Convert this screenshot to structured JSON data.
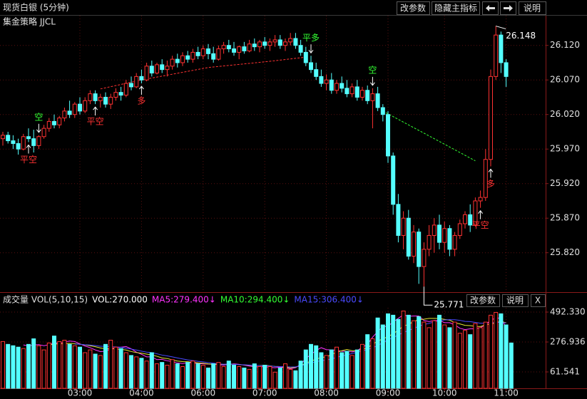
{
  "header": {
    "title": "现货白银 (5分钟)",
    "buttons": [
      "改参数",
      "隐藏主指标",
      "说明"
    ]
  },
  "chart_data": [
    {
      "type": "candlestick",
      "title": "集金策略 JJCL",
      "colors": {
        "up": "#ff3232",
        "down": "#54ffff"
      },
      "ylim": [
        25.763,
        26.163
      ],
      "yticks": [
        {
          "value": 25.82,
          "label": "25.820"
        },
        {
          "value": 25.87,
          "label": "25.870"
        },
        {
          "value": 25.92,
          "label": "25.920"
        },
        {
          "value": 25.97,
          "label": "25.970"
        },
        {
          "value": 26.02,
          "label": "26.020"
        },
        {
          "value": 26.07,
          "label": "26.070"
        },
        {
          "value": 26.12,
          "label": "26.120"
        }
      ],
      "candles": [
        [
          25.985,
          25.995,
          25.975,
          25.99
        ],
        [
          25.99,
          25.995,
          25.978,
          25.982
        ],
        [
          25.982,
          25.99,
          25.97,
          25.978
        ],
        [
          25.978,
          25.985,
          25.962,
          25.97
        ],
        [
          25.97,
          25.992,
          25.968,
          25.988
        ],
        [
          25.988,
          26.0,
          25.98,
          25.985
        ],
        [
          25.985,
          25.998,
          25.965,
          25.975
        ],
        [
          25.975,
          25.99,
          25.97,
          25.988
        ],
        [
          25.988,
          26.005,
          25.985,
          26.0
        ],
        [
          26.0,
          26.015,
          25.995,
          26.01
        ],
        [
          26.01,
          26.02,
          26.0,
          26.005
        ],
        [
          26.005,
          26.018,
          26.0,
          26.015
        ],
        [
          26.015,
          26.03,
          26.01,
          26.025
        ],
        [
          26.025,
          26.04,
          26.015,
          26.02
        ],
        [
          26.02,
          26.038,
          26.015,
          26.035
        ],
        [
          26.035,
          26.045,
          26.02,
          26.025
        ],
        [
          26.025,
          26.045,
          26.022,
          26.04
        ],
        [
          26.04,
          26.055,
          26.035,
          26.05
        ],
        [
          26.05,
          26.055,
          26.035,
          26.04
        ],
        [
          26.04,
          26.05,
          26.03,
          26.045
        ],
        [
          26.045,
          26.052,
          26.03,
          26.035
        ],
        [
          26.035,
          26.05,
          26.028,
          26.045
        ],
        [
          26.045,
          26.058,
          26.04,
          26.052
        ],
        [
          26.052,
          26.06,
          26.04,
          26.048
        ],
        [
          26.048,
          26.07,
          26.045,
          26.065
        ],
        [
          26.065,
          26.075,
          26.055,
          26.06
        ],
        [
          26.06,
          26.08,
          26.058,
          26.075
        ],
        [
          26.075,
          26.085,
          26.065,
          26.07
        ],
        [
          26.07,
          26.095,
          26.068,
          26.09
        ],
        [
          26.09,
          26.098,
          26.075,
          26.08
        ],
        [
          26.08,
          26.095,
          26.078,
          26.092
        ],
        [
          26.092,
          26.1,
          26.08,
          26.085
        ],
        [
          26.085,
          26.098,
          26.075,
          26.09
        ],
        [
          26.09,
          26.105,
          26.085,
          26.1
        ],
        [
          26.1,
          26.108,
          26.088,
          26.095
        ],
        [
          26.095,
          26.11,
          26.09,
          26.105
        ],
        [
          26.105,
          26.112,
          26.095,
          26.1
        ],
        [
          26.1,
          26.115,
          26.095,
          26.11
        ],
        [
          26.11,
          26.118,
          26.1,
          26.105
        ],
        [
          26.105,
          26.12,
          26.1,
          26.115
        ],
        [
          26.115,
          26.122,
          26.1,
          26.108
        ],
        [
          26.108,
          26.118,
          26.095,
          26.1
        ],
        [
          26.1,
          26.12,
          26.098,
          26.115
        ],
        [
          26.115,
          26.125,
          26.108,
          26.12
        ],
        [
          26.12,
          26.128,
          26.11,
          26.115
        ],
        [
          26.115,
          26.125,
          26.105,
          26.11
        ],
        [
          26.11,
          26.12,
          26.1,
          26.118
        ],
        [
          26.118,
          26.125,
          26.108,
          26.112
        ],
        [
          26.112,
          26.128,
          26.11,
          26.122
        ],
        [
          26.122,
          26.13,
          26.112,
          26.118
        ],
        [
          26.118,
          26.128,
          26.11,
          26.125
        ],
        [
          26.125,
          26.132,
          26.115,
          26.12
        ],
        [
          26.12,
          26.13,
          26.112,
          26.125
        ],
        [
          26.125,
          26.135,
          26.118,
          26.128
        ],
        [
          26.128,
          26.135,
          26.115,
          26.12
        ],
        [
          26.12,
          26.13,
          26.112,
          26.125
        ],
        [
          26.125,
          26.138,
          26.12,
          26.13
        ],
        [
          26.13,
          26.138,
          26.115,
          26.12
        ],
        [
          26.12,
          26.128,
          26.105,
          26.11
        ],
        [
          26.11,
          26.118,
          26.09,
          26.095
        ],
        [
          26.095,
          26.105,
          26.08,
          26.085
        ],
        [
          26.085,
          26.095,
          26.07,
          26.075
        ],
        [
          26.075,
          26.085,
          26.06,
          26.065
        ],
        [
          26.065,
          26.078,
          26.055,
          26.07
        ],
        [
          26.07,
          26.08,
          26.05,
          26.055
        ],
        [
          26.055,
          26.07,
          26.05,
          26.065
        ],
        [
          26.065,
          26.075,
          26.052,
          26.058
        ],
        [
          26.058,
          26.07,
          26.045,
          26.05
        ],
        [
          26.05,
          26.065,
          26.045,
          26.06
        ],
        [
          26.06,
          26.07,
          26.04,
          26.045
        ],
        [
          26.045,
          26.06,
          26.04,
          26.055
        ],
        [
          26.055,
          26.062,
          26.035,
          26.04
        ],
        [
          26.04,
          26.058,
          26.0,
          26.05
        ],
        [
          26.05,
          26.06,
          26.025,
          26.03
        ],
        [
          26.03,
          26.035,
          26.01,
          26.02
        ],
        [
          26.02,
          26.025,
          25.95,
          25.96
        ],
        [
          25.96,
          25.965,
          25.875,
          25.89
        ],
        [
          25.89,
          25.905,
          25.835,
          25.845
        ],
        [
          25.845,
          25.88,
          25.825,
          25.87
        ],
        [
          25.87,
          25.882,
          25.81,
          25.815
        ],
        [
          25.815,
          25.86,
          25.805,
          25.85
        ],
        [
          25.85,
          25.855,
          25.775,
          25.8
        ],
        [
          25.8,
          25.835,
          25.771,
          25.825
        ],
        [
          25.825,
          25.86,
          25.815,
          25.845
        ],
        [
          25.845,
          25.87,
          25.82,
          25.86
        ],
        [
          25.86,
          25.875,
          25.825,
          25.835
        ],
        [
          25.835,
          25.865,
          25.82,
          25.855
        ],
        [
          25.855,
          25.86,
          25.815,
          25.825
        ],
        [
          25.825,
          25.85,
          25.815,
          25.845
        ],
        [
          25.845,
          25.868,
          25.84,
          25.862
        ],
        [
          25.862,
          25.88,
          25.855,
          25.875
        ],
        [
          25.875,
          25.89,
          25.85,
          25.86
        ],
        [
          25.86,
          25.9,
          25.858,
          25.895
        ],
        [
          25.895,
          25.91,
          25.885,
          25.9
        ],
        [
          25.9,
          25.97,
          25.895,
          25.955
        ],
        [
          25.955,
          26.085,
          25.945,
          26.075
        ],
        [
          26.075,
          26.148,
          26.07,
          26.135
        ],
        [
          26.135,
          26.14,
          26.08,
          26.095
        ],
        [
          26.095,
          26.1,
          26.06,
          26.075
        ]
      ],
      "signals": [
        {
          "text": "空",
          "candle": 7,
          "side": "above",
          "color": "#33ff33"
        },
        {
          "text": "平空",
          "candle": 5,
          "side": "below",
          "color": "#ff3232"
        },
        {
          "text": "平空",
          "candle": 18,
          "side": "below",
          "color": "#ff3232"
        },
        {
          "text": "多",
          "candle": 27,
          "side": "below",
          "color": "#ff3232"
        },
        {
          "text": "平多",
          "candle": 60,
          "side": "above",
          "color": "#33ff33"
        },
        {
          "text": "空",
          "candle": 72,
          "side": "above",
          "color": "#33ff33"
        },
        {
          "text": "平空",
          "candle": 93,
          "side": "below",
          "color": "#ff3232"
        },
        {
          "text": "多",
          "candle": 95,
          "side": "below",
          "color": "#ff3232"
        }
      ],
      "extremes": [
        {
          "value": 26.148,
          "candle": 96
        },
        {
          "value": 25.771,
          "candle": 82
        }
      ],
      "strategy_lines": [
        {
          "color": "#ff3232",
          "points": [
            [
              19,
              26.057
            ],
            [
              27,
              26.07
            ],
            [
              40,
              26.088
            ],
            [
              52,
              26.097
            ],
            [
              59,
              26.103
            ]
          ]
        },
        {
          "color": "#33ff33",
          "points": [
            [
              74,
              26.025
            ],
            [
              92,
              25.953
            ]
          ]
        }
      ]
    },
    {
      "type": "bar",
      "title": "成交量 VOL(5,10,15)",
      "readouts": [
        {
          "text": "VOL:270.000",
          "color": "#ffffff"
        },
        {
          "text": "MA5:279.400↓",
          "color": "#ff33ff"
        },
        {
          "text": "MA10:294.400↓",
          "color": "#33ff33"
        },
        {
          "text": "MA15:306.400↓",
          "color": "#4a4aff"
        }
      ],
      "buttons": [
        "改参数",
        "说明",
        "X"
      ],
      "ylim": [
        -56.4,
        523.1
      ],
      "yticks": [
        {
          "value": 61.541,
          "label": "61.541"
        },
        {
          "value": 276.936,
          "label": "276.936"
        },
        {
          "value": 492.33,
          "label": "492.330"
        }
      ],
      "xticks": [
        {
          "value": 15,
          "label": "03:00"
        },
        {
          "value": 27,
          "label": "04:00"
        },
        {
          "value": 39,
          "label": "06:00"
        },
        {
          "value": 51,
          "label": "07:00"
        },
        {
          "value": 63,
          "label": "08:00"
        },
        {
          "value": 75,
          "label": "09:00"
        },
        {
          "value": 86,
          "label": "10:00"
        },
        {
          "value": 98,
          "label": "11:00"
        }
      ],
      "values": [
        280,
        260,
        250,
        240,
        230,
        260,
        300,
        250,
        220,
        270,
        320,
        280,
        290,
        260,
        250,
        240,
        200,
        220,
        190,
        180,
        260,
        290,
        240,
        230,
        200,
        180,
        170,
        160,
        140,
        200,
        120,
        130,
        110,
        150,
        120,
        100,
        130,
        140,
        120,
        110,
        90,
        120,
        130,
        100,
        140,
        110,
        100,
        90,
        80,
        120,
        100,
        110,
        100,
        60,
        90,
        120,
        80,
        70,
        140,
        220,
        260,
        250,
        200,
        180,
        220,
        240,
        200,
        210,
        180,
        220,
        260,
        330,
        300,
        450,
        400,
        480,
        470,
        440,
        500,
        470,
        430,
        460,
        420,
        380,
        430,
        470,
        400,
        380,
        420,
        340,
        360,
        330,
        410,
        380,
        420,
        470,
        490,
        480,
        400,
        270
      ],
      "series": [
        {
          "color": "#ff33ff",
          "values": [
            null,
            null,
            null,
            null,
            256,
            248,
            256,
            258,
            250,
            258,
            272,
            268,
            276,
            284,
            280,
            264,
            248,
            236,
            220,
            208,
            210,
            228,
            236,
            240,
            244,
            228,
            204,
            188,
            170,
            170,
            150,
            152,
            142,
            136,
            126,
            122,
            128,
            128,
            122,
            120,
            118,
            116,
            114,
            110,
            116,
            120,
            116,
            110,
            104,
            98,
            98,
            100,
            94,
            92,
            96,
            92,
            84,
            92,
            116,
            158,
            188,
            216,
            236,
            222,
            220,
            218,
            210,
            210,
            206,
            214,
            240,
            258,
            312,
            352,
            386,
            392,
            420,
            448,
            472,
            462,
            464,
            464,
            432,
            424,
            432,
            432,
            416,
            416,
            400,
            376,
            366,
            372,
            372,
            380,
            402,
            434,
            450,
            448,
            382
          ]
        },
        {
          "color": "#e6e633",
          "values": [
            null,
            null,
            null,
            null,
            null,
            null,
            null,
            null,
            null,
            255,
            262,
            263,
            266,
            267,
            265,
            261,
            256,
            250,
            243,
            234,
            228,
            229,
            227,
            224,
            219,
            208,
            201,
            196,
            190,
            184,
            174,
            162,
            158,
            148,
            140,
            136,
            135,
            130,
            127,
            124,
            119,
            117,
            117,
            116,
            117,
            117,
            114,
            112,
            109,
            107,
            108,
            110,
            105,
            101,
            100,
            95,
            91,
            96,
            106,
            124,
            140,
            153,
            166,
            169,
            187,
            203,
            214,
            223,
            214,
            215,
            225,
            234,
            261,
            283,
            300,
            315,
            337,
            362,
            392,
            403,
            425,
            437,
            441,
            447,
            447,
            446,
            440,
            434,
            416,
            407,
            397,
            395,
            390,
            388,
            401,
            405,
            415,
            426,
            415
          ]
        },
        {
          "color": "#4a4aff",
          "values": [
            null,
            null,
            null,
            null,
            null,
            null,
            null,
            null,
            null,
            null,
            null,
            null,
            null,
            null,
            262,
            260,
            257,
            255,
            251,
            246,
            246,
            243,
            242,
            239,
            232,
            226,
            219,
            211,
            204,
            201,
            192,
            183,
            177,
            170,
            162,
            155,
            148,
            143,
            138,
            134,
            128,
            125,
            120,
            117,
            118,
            116,
            114,
            113,
            111,
            109,
            107,
            107,
            104,
            101,
            100,
            100,
            97,
            98,
            105,
            117,
            127,
            135,
            143,
            147,
            155,
            166,
            177,
            184,
            194,
            202,
            213,
            222,
            236,
            251,
            273,
            292,
            309,
            328,
            345,
            360,
            375,
            391,
            403,
            411,
            422,
            430,
            436,
            438,
            437,
            433,
            425,
            424,
            418,
            412,
            412,
            414,
            418,
            418,
            414
          ]
        }
      ]
    }
  ]
}
